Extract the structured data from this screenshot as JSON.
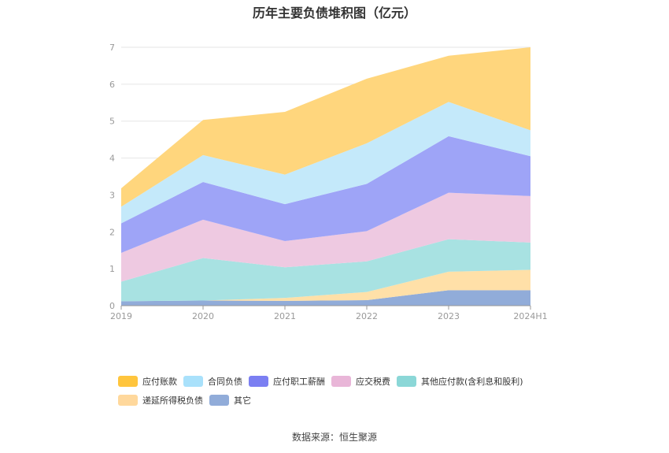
{
  "chart_data": {
    "type": "area",
    "stacked": true,
    "title": "历年主要负债堆积图（亿元）",
    "categories": [
      "2019",
      "2020",
      "2021",
      "2022",
      "2023",
      "2024H1"
    ],
    "ylim": [
      0,
      7
    ],
    "yticks": [
      0,
      1,
      2,
      3,
      4,
      5,
      6,
      7
    ],
    "grid": true,
    "legend_position": "bottom",
    "series": [
      {
        "name": "其它",
        "color": "#91acd9",
        "values": [
          0.12,
          0.14,
          0.13,
          0.15,
          0.42,
          0.42
        ]
      },
      {
        "name": "递延所得税负债",
        "color": "#ffe0a8",
        "values": [
          0.0,
          0.0,
          0.08,
          0.22,
          0.5,
          0.55
        ]
      },
      {
        "name": "其他应付款(含利息和股利)",
        "color": "#a8e2e2",
        "values": [
          0.53,
          1.15,
          0.83,
          0.83,
          0.88,
          0.74
        ]
      },
      {
        "name": "应交税费",
        "color": "#eec9e1",
        "values": [
          0.78,
          1.04,
          0.71,
          0.82,
          1.26,
          1.26
        ]
      },
      {
        "name": "应付职工薪酬",
        "color": "#9ea4f7",
        "values": [
          0.8,
          1.02,
          1.0,
          1.28,
          1.53,
          1.08
        ]
      },
      {
        "name": "合同负债",
        "color": "#c4e9fa",
        "values": [
          0.45,
          0.73,
          0.8,
          1.1,
          0.93,
          0.7
        ]
      },
      {
        "name": "应付账款",
        "color": "#ffd67d",
        "values": [
          0.5,
          0.95,
          1.7,
          1.75,
          1.25,
          2.25
        ]
      }
    ],
    "legend": [
      {
        "name": "应付账款",
        "color": "#ffc53d"
      },
      {
        "name": "合同负债",
        "color": "#a9e1fb"
      },
      {
        "name": "应付职工薪酬",
        "color": "#7b7ff2"
      },
      {
        "name": "应交税费",
        "color": "#e9b6d8"
      },
      {
        "name": "其他应付款(含利息和股利)",
        "color": "#8bd7d7"
      },
      {
        "name": "递延所得税负债",
        "color": "#ffd89c"
      },
      {
        "name": "其它",
        "color": "#91acd9"
      }
    ]
  },
  "source": "数据来源：恒生聚源"
}
